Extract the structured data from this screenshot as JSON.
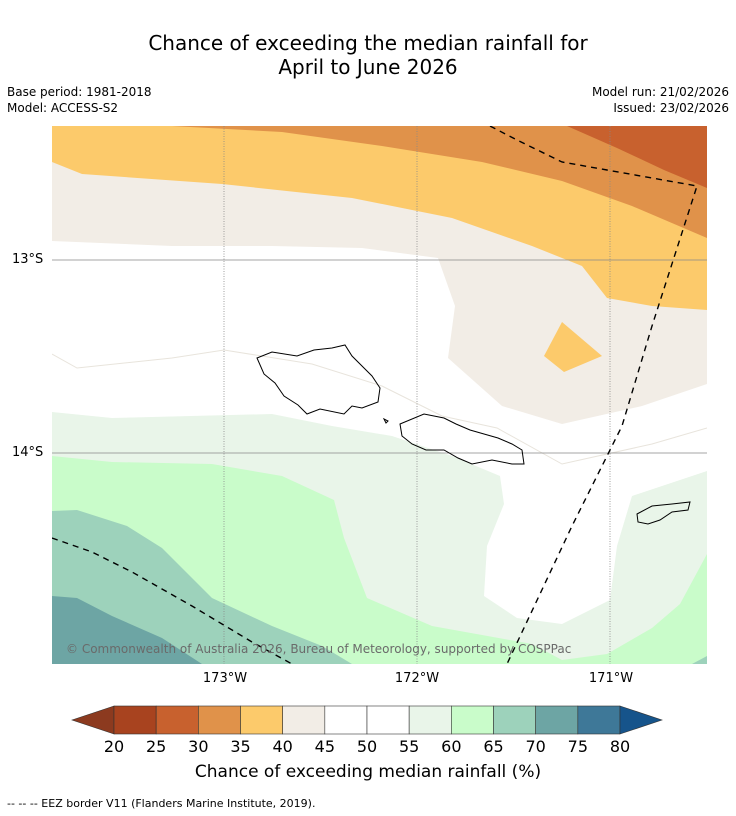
{
  "title": {
    "line1": "Chance of exceeding the median rainfall for",
    "line2": "April to June 2026"
  },
  "meta": {
    "base_period": "Base period: 1981-2018",
    "model": "Model: ACCESS-S2",
    "model_run": "Model run: 21/02/2026",
    "issued": "Issued: 23/02/2026"
  },
  "map": {
    "lat_labels": [
      "13°S",
      "14°S"
    ],
    "lon_labels": [
      "173°W",
      "172°W",
      "171°W"
    ],
    "copyright": "© Commonwealth of Australia 2026, Bureau of Meteorology, supported by COSPPac",
    "islands": [
      "Savai'i",
      "Upolu",
      "Tutuila"
    ]
  },
  "colorbar": {
    "ticks": [
      "20",
      "25",
      "30",
      "35",
      "40",
      "45",
      "50",
      "55",
      "60",
      "65",
      "70",
      "75",
      "80"
    ],
    "colors": [
      "#a8431f",
      "#c8612e",
      "#e0924a",
      "#fcca6b",
      "#f2ede6",
      "#ffffff",
      "#ffffff",
      "#e9f5e9",
      "#c9fcca",
      "#9dd2bb",
      "#6da5a4",
      "#3e7898"
    ],
    "under_color": "#8c3a1f",
    "over_color": "#16548b",
    "label": "Chance of exceeding median rainfall (%)"
  },
  "footnote": "--  --  -- EEZ border V11 (Flanders Marine Institute, 2019)."
}
